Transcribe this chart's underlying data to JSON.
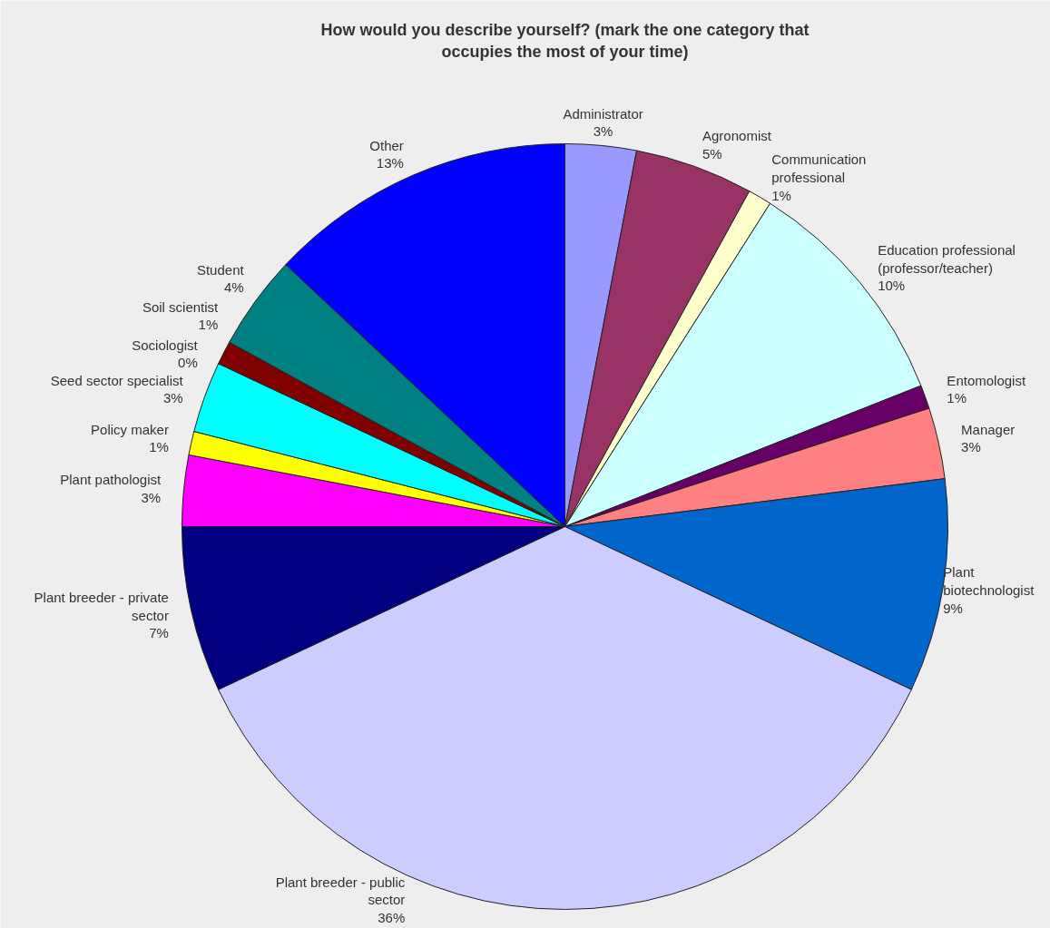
{
  "chart_data": {
    "type": "pie",
    "title": "How would you describe yourself? (mark the one category that occupies the most of your time)",
    "categories": [
      "Administrator",
      "Agronomist",
      "Communication professional",
      "Education professional (professor/teacher)",
      "Entomologist",
      "Manager",
      "Plant biotechnologist",
      "Plant breeder - public sector",
      "Plant breeder - private sector",
      "Plant pathologist",
      "Policy maker",
      "Seed sector specialist",
      "Sociologist",
      "Soil scientist",
      "Student",
      "Other"
    ],
    "values": [
      3,
      5,
      1,
      10,
      1,
      3,
      9,
      36,
      7,
      3,
      1,
      3,
      0,
      1,
      4,
      13
    ],
    "value_labels": [
      "3%",
      "5%",
      "1%",
      "10%",
      "1%",
      "3%",
      "9%",
      "36%",
      "7%",
      "3%",
      "1%",
      "3%",
      "0%",
      "1%",
      "4%",
      "13%"
    ],
    "colors": [
      "#9999ff",
      "#993366",
      "#ffffcc",
      "#ccffff",
      "#660066",
      "#ff8080",
      "#0066cc",
      "#ccccff",
      "#000080",
      "#ff00ff",
      "#ffff00",
      "#00ffff",
      "#800080",
      "#800000",
      "#008080",
      "#0000ff"
    ]
  }
}
